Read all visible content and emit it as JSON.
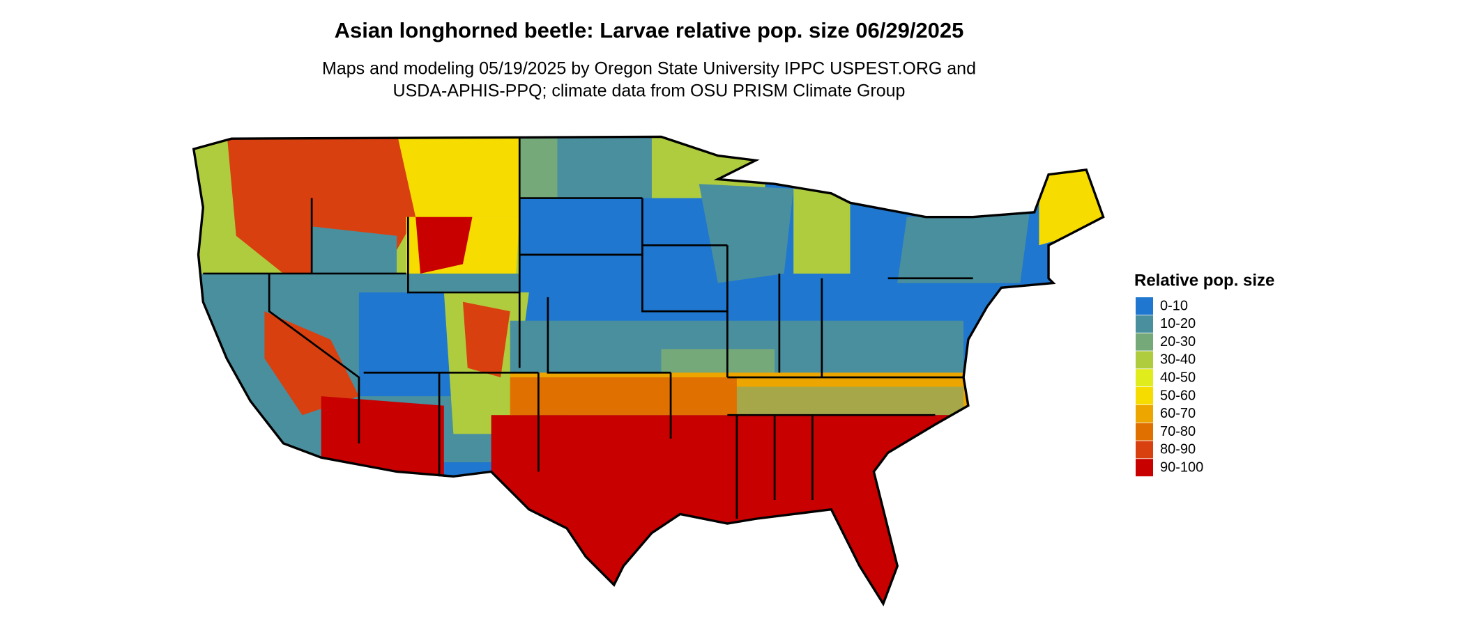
{
  "title": "Asian longhorned beetle: Larvae relative pop. size 06/29/2025",
  "subtitle": [
    "Maps and modeling 05/19/2025 by Oregon State University IPPC USPEST.ORG and",
    "USDA-APHIS-PPQ; climate data from OSU PRISM Climate Group"
  ],
  "legend": {
    "title": "Relative pop. size",
    "items": [
      {
        "label": "0-10",
        "color": "#1f77cf"
      },
      {
        "label": "10-20",
        "color": "#4a8f9e"
      },
      {
        "label": "20-30",
        "color": "#76a97a"
      },
      {
        "label": "30-40",
        "color": "#afcc3f"
      },
      {
        "label": "40-50",
        "color": "#e1ec1c"
      },
      {
        "label": "50-60",
        "color": "#f7dc00"
      },
      {
        "label": "60-70",
        "color": "#eda600"
      },
      {
        "label": "70-80",
        "color": "#e07000"
      },
      {
        "label": "80-90",
        "color": "#d84010"
      },
      {
        "label": "90-100",
        "color": "#c80000"
      }
    ]
  }
}
